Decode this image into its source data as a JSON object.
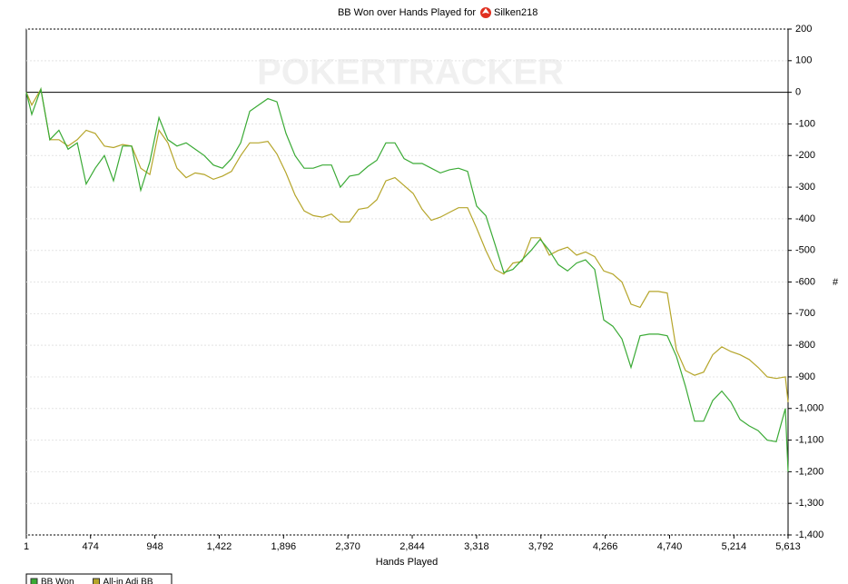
{
  "chart_data": {
    "type": "line",
    "title": "BB Won over Hands Played for",
    "player": "Silken218",
    "watermark": "POKERTRACKER",
    "xlabel": "Hands Played",
    "ylabel": "#",
    "x": [
      1,
      41,
      108,
      174,
      241,
      309,
      376,
      442,
      509,
      576,
      643,
      710,
      777,
      844,
      911,
      978,
      1044,
      1111,
      1178,
      1245,
      1312,
      1379,
      1446,
      1513,
      1580,
      1647,
      1713,
      1780,
      1847,
      1914,
      1981,
      2048,
      2115,
      2182,
      2249,
      2315,
      2382,
      2449,
      2516,
      2583,
      2650,
      2717,
      2784,
      2851,
      2917,
      2984,
      3051,
      3118,
      3185,
      3252,
      3319,
      3386,
      3453,
      3519,
      3586,
      3653,
      3720,
      3787,
      3854,
      3921,
      3988,
      4055,
      4121,
      4188,
      4255,
      4322,
      4389,
      4456,
      4523,
      4590,
      4657,
      4723,
      4790,
      4857,
      4924,
      4991,
      5058,
      5125,
      5192,
      5259,
      5326,
      5392,
      5459,
      5526,
      5593,
      5613
    ],
    "series": [
      {
        "name": "BB Won",
        "color": "#3aaa35",
        "values": [
          0,
          -70,
          10,
          -150,
          -120,
          -180,
          -160,
          -290,
          -240,
          -200,
          -280,
          -170,
          -170,
          -310,
          -220,
          -80,
          -150,
          -170,
          -160,
          -180,
          -200,
          -230,
          -240,
          -210,
          -160,
          -60,
          -40,
          -20,
          -30,
          -130,
          -200,
          -240,
          -240,
          -230,
          -230,
          -300,
          -265,
          -260,
          -235,
          -215,
          -160,
          -160,
          -210,
          -225,
          -225,
          -240,
          -255,
          -245,
          -240,
          -250,
          -360,
          -390,
          -480,
          -570,
          -560,
          -530,
          -500,
          -465,
          -500,
          -545,
          -565,
          -540,
          -530,
          -560,
          -720,
          -740,
          -780,
          -870,
          -770,
          -765,
          -765,
          -770,
          -835,
          -930,
          -1040,
          -1040,
          -975,
          -945,
          -980,
          -1035,
          -1055,
          -1070,
          -1100,
          -1105,
          -1000,
          -1200
        ]
      },
      {
        "name": "All-in Adj BB",
        "color": "#b5a52a",
        "values": [
          0,
          -40,
          10,
          -150,
          -150,
          -170,
          -150,
          -120,
          -130,
          -170,
          -175,
          -165,
          -170,
          -240,
          -260,
          -120,
          -160,
          -240,
          -270,
          -255,
          -260,
          -275,
          -265,
          -250,
          -200,
          -160,
          -160,
          -155,
          -195,
          -255,
          -325,
          -375,
          -390,
          -395,
          -385,
          -410,
          -410,
          -370,
          -365,
          -340,
          -280,
          -270,
          -295,
          -320,
          -370,
          -405,
          -395,
          -380,
          -365,
          -365,
          -430,
          -500,
          -560,
          -575,
          -540,
          -535,
          -460,
          -460,
          -515,
          -500,
          -490,
          -515,
          -505,
          -520,
          -565,
          -575,
          -600,
          -670,
          -680,
          -630,
          -630,
          -635,
          -815,
          -880,
          -895,
          -885,
          -830,
          -805,
          -820,
          -830,
          -845,
          -870,
          -900,
          -905,
          -900,
          -980
        ]
      }
    ],
    "xlim": [
      1,
      5613
    ],
    "xticks": [
      1,
      474,
      948,
      {
        "value": 1422,
        "label": "1,422"
      },
      {
        "value": 1896,
        "label": "1,896"
      },
      {
        "value": 2370,
        "label": "2,370"
      },
      {
        "value": 2844,
        "label": "2,844"
      },
      {
        "value": 3318,
        "label": "3,318"
      },
      {
        "value": 3792,
        "label": "3,792"
      },
      {
        "value": 4266,
        "label": "4,266"
      },
      {
        "value": 4740,
        "label": "4,740"
      },
      {
        "value": 5214,
        "label": "5,214"
      },
      {
        "value": 5613,
        "label": "5,613"
      }
    ],
    "ylim": [
      -1400,
      200
    ],
    "yticks": [
      200,
      100,
      0,
      -100,
      -200,
      -300,
      -400,
      -500,
      -600,
      -700,
      -800,
      -900,
      {
        "value": -1000,
        "label": "-1,000"
      },
      {
        "value": -1100,
        "label": "-1,100"
      },
      {
        "value": -1200,
        "label": "-1,200"
      },
      {
        "value": -1300,
        "label": "-1,300"
      },
      {
        "value": -1400,
        "label": "-1,400"
      }
    ],
    "grid": true
  }
}
